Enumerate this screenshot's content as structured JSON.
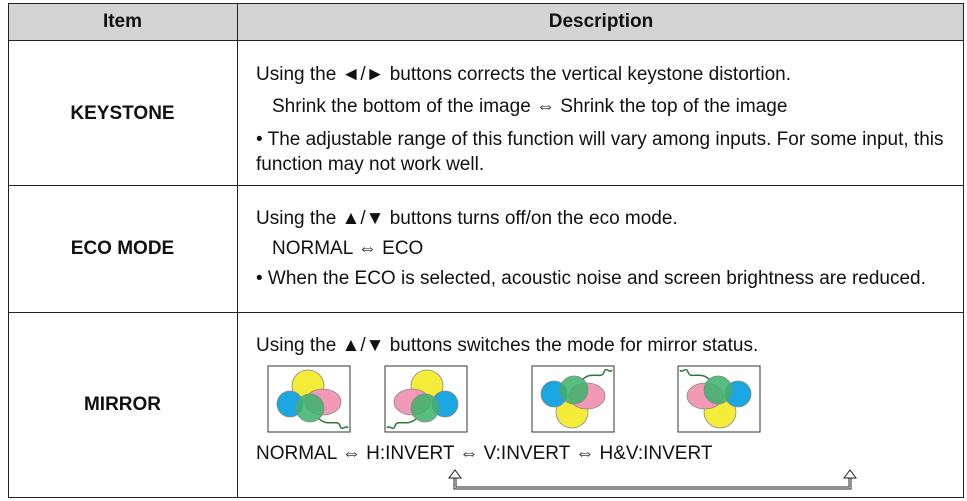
{
  "table": {
    "header": [
      "Item",
      "Description"
    ],
    "rows": [
      {
        "item": "KEYSTONE",
        "lines": [
          "Using the ◄/► buttons corrects the vertical keystone distortion.",
          "Shrink the bottom of the image ⇔ Shrink the top of the image",
          "• The adjustable range of this function will vary among inputs. For some input, this function may not work well."
        ]
      },
      {
        "item": "ECO MODE",
        "lines": [
          "Using the ▲/▼ buttons turns off/on the eco mode.",
          "NORMAL ⇔ ECO",
          "• When the ECO is selected, acoustic noise and screen brightness are reduced."
        ]
      },
      {
        "item": "MIRROR",
        "lines": [
          "Using the ▲/▼ buttons switches the mode for mirror status.",
          "NORMAL ⇔ H:INVERT ⇔ V:INVERT ⇔ H&V:INVERT"
        ]
      }
    ]
  }
}
